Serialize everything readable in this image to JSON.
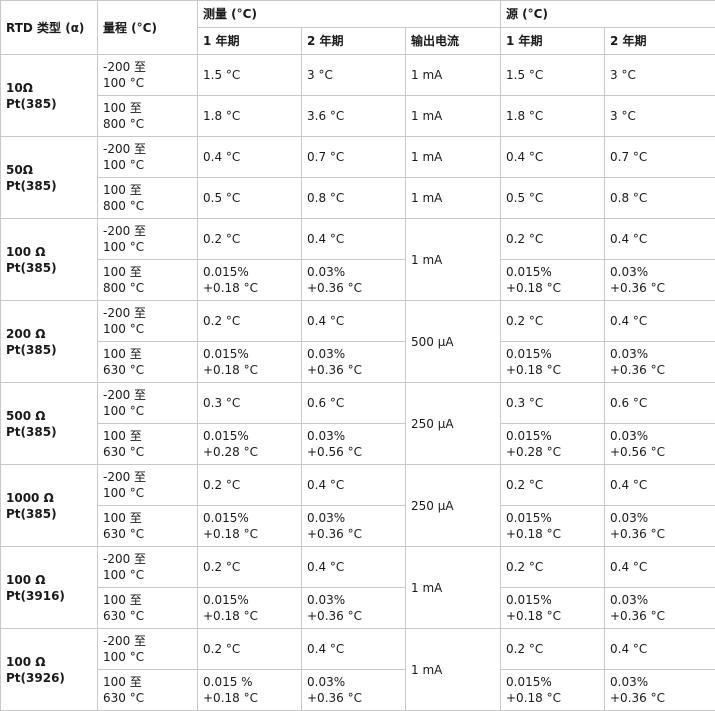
{
  "headers": {
    "rtd_type": "RTD 类型 (α)",
    "range": "量程 (°C)",
    "measure": "测量 (°C)",
    "source": "源 (°C)",
    "one_year": "1 年期",
    "two_year": "2 年期",
    "output_current": "输出电流"
  },
  "groups": [
    {
      "type": "10Ω\nPt(385)",
      "current": null,
      "rows": [
        {
          "range": "-200 至\n100 °C",
          "m1": "1.5 °C",
          "m2": "3 °C",
          "current": "1 mA",
          "s1": "1.5 °C",
          "s2": "3 °C"
        },
        {
          "range": "100 至\n800 °C",
          "m1": "1.8 °C",
          "m2": "3.6 °C",
          "current": "1 mA",
          "s1": "1.8 °C",
          "s2": "3 °C"
        }
      ]
    },
    {
      "type": "50Ω\nPt(385)",
      "current": null,
      "rows": [
        {
          "range": "-200 至\n100 °C",
          "m1": "0.4 °C",
          "m2": "0.7 °C",
          "current": "1 mA",
          "s1": "0.4 °C",
          "s2": "0.7 °C"
        },
        {
          "range": "100 至\n800 °C",
          "m1": "0.5 °C",
          "m2": "0.8 °C",
          "current": "1 mA",
          "s1": "0.5 °C",
          "s2": "0.8 °C"
        }
      ]
    },
    {
      "type": "100 Ω\nPt(385)",
      "current": "1 mA",
      "rows": [
        {
          "range": "-200 至\n100 °C",
          "m1": "0.2 °C",
          "m2": "0.4 °C",
          "s1": "0.2 °C",
          "s2": "0.4 °C"
        },
        {
          "range": "100 至\n800 °C",
          "m1": "0.015%\n+0.18 °C",
          "m2": "0.03%\n+0.36 °C",
          "s1": "0.015%\n+0.18 °C",
          "s2": "0.03%\n+0.36 °C"
        }
      ]
    },
    {
      "type": "200 Ω\nPt(385)",
      "current": "500 µA",
      "rows": [
        {
          "range": "-200 至\n100 °C",
          "m1": "0.2 °C",
          "m2": "0.4 °C",
          "s1": "0.2 °C",
          "s2": "0.4 °C"
        },
        {
          "range": "100 至\n630 °C",
          "m1": "0.015%\n+0.18 °C",
          "m2": "0.03%\n+0.36 °C",
          "s1": "0.015%\n+0.18 °C",
          "s2": "0.03%\n+0.36 °C"
        }
      ]
    },
    {
      "type": "500 Ω\nPt(385)",
      "current": "250 µA",
      "rows": [
        {
          "range": "-200 至\n100 °C",
          "m1": "0.3 °C",
          "m2": "0.6 °C",
          "s1": "0.3 °C",
          "s2": "0.6 °C"
        },
        {
          "range": "100 至\n630 °C",
          "m1": "0.015%\n+0.28 °C",
          "m2": "0.03%\n+0.56 °C",
          "s1": "0.015%\n+0.28 °C",
          "s2": "0.03%\n+0.56 °C"
        }
      ]
    },
    {
      "type": "1000 Ω\nPt(385)",
      "current": "250 µA",
      "rows": [
        {
          "range": "-200 至\n100 °C",
          "m1": "0.2 °C",
          "m2": "0.4 °C",
          "s1": "0.2 °C",
          "s2": "0.4 °C"
        },
        {
          "range": "100 至\n630 °C",
          "m1": "0.015%\n+0.18 °C",
          "m2": "0.03%\n+0.36 °C",
          "s1": "0.015%\n+0.18 °C",
          "s2": "0.03%\n+0.36 °C"
        }
      ]
    },
    {
      "type": "100 Ω\nPt(3916)",
      "current": "1 mA",
      "rows": [
        {
          "range": "-200 至\n100 °C",
          "m1": "0.2 °C",
          "m2": "0.4 °C",
          "s1": "0.2 °C",
          "s2": "0.4 °C"
        },
        {
          "range": "100 至\n630 °C",
          "m1": "0.015%\n+0.18 °C",
          "m2": "0.03%\n+0.36 °C",
          "s1": "0.015%\n+0.18 °C",
          "s2": "0.03%\n+0.36 °C"
        }
      ]
    },
    {
      "type": "100 Ω\nPt(3926)",
      "current": "1 mA",
      "rows": [
        {
          "range": "-200 至\n100 °C",
          "m1": "0.2 °C",
          "m2": "0.4 °C",
          "s1": "0.2 °C",
          "s2": "0.4 °C"
        },
        {
          "range": "100 至\n630 °C",
          "m1": "0.015 %\n+0.18 °C",
          "m2": "0.03%\n+0.36 °C",
          "s1": "0.015%\n+0.18 °C",
          "s2": "0.03%\n+0.36 °C"
        }
      ]
    }
  ]
}
